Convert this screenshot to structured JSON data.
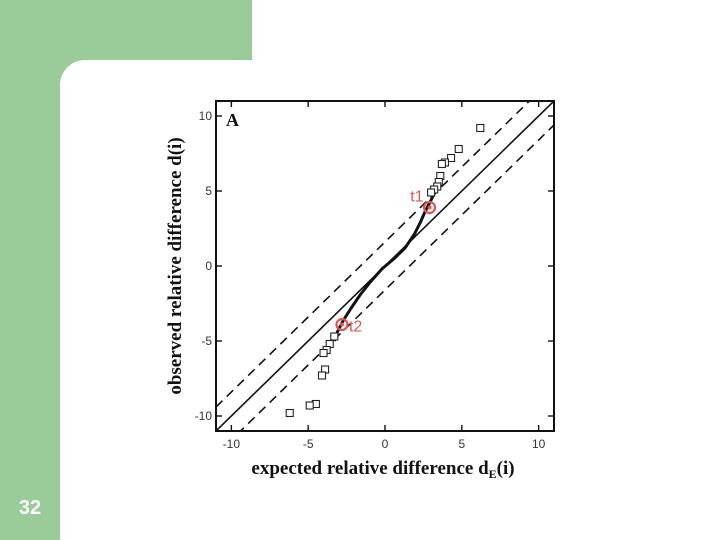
{
  "slide": {
    "page_number": "32",
    "colors": {
      "accent_green": "#99cc99",
      "background": "#ffffff"
    }
  },
  "chart_data": {
    "type": "scatter",
    "panel_label": "A",
    "title": "",
    "xlabel": "expected relative difference d",
    "xlabel_subscript": "E",
    "xlabel_suffix": "(i)",
    "ylabel": "observed relative difference d(i)",
    "xlim": [
      -11,
      11
    ],
    "ylim": [
      -11,
      11
    ],
    "x_ticks": [
      -10,
      -5,
      0,
      5,
      10
    ],
    "y_ticks": [
      -10,
      -5,
      0,
      5,
      10
    ],
    "grid": false,
    "series": [
      {
        "marker": "open-square",
        "points": [
          [
            6.2,
            9.2
          ],
          [
            4.8,
            7.8
          ],
          [
            4.3,
            7.2
          ],
          [
            3.9,
            6.9
          ],
          [
            3.7,
            6.8
          ],
          [
            3.6,
            6.0
          ],
          [
            3.5,
            5.6
          ],
          [
            3.4,
            5.3
          ],
          [
            3.2,
            5.1
          ],
          [
            3.0,
            4.9
          ],
          [
            -3.3,
            -4.7
          ],
          [
            -3.6,
            -5.2
          ],
          [
            -3.8,
            -5.6
          ],
          [
            -4.0,
            -5.8
          ],
          [
            -3.9,
            -6.9
          ],
          [
            -4.1,
            -7.3
          ],
          [
            -4.5,
            -9.2
          ],
          [
            -4.9,
            -9.3
          ],
          [
            -6.2,
            -9.8
          ]
        ]
      },
      {
        "type": "line",
        "style": "solid-thick",
        "points": [
          [
            -3.3,
            -5.0
          ],
          [
            -3.1,
            -4.4
          ],
          [
            -2.7,
            -3.6
          ],
          [
            -2.2,
            -2.8
          ],
          [
            -1.6,
            -1.9
          ],
          [
            -0.9,
            -1.0
          ],
          [
            -0.2,
            -0.2
          ],
          [
            0.6,
            0.5
          ],
          [
            1.3,
            1.2
          ],
          [
            1.9,
            2.1
          ],
          [
            2.3,
            2.9
          ],
          [
            2.6,
            3.6
          ],
          [
            2.8,
            4.0
          ],
          [
            3.1,
            4.6
          ],
          [
            3.4,
            5.2
          ]
        ]
      }
    ],
    "reference_lines": [
      {
        "style": "solid",
        "slope": 1,
        "intercept": 0
      },
      {
        "style": "dashed",
        "slope": 1,
        "intercept": 1.6
      },
      {
        "style": "dashed",
        "slope": 1,
        "intercept": -1.6
      }
    ],
    "annotations": [
      {
        "label": "t1",
        "x": 2.9,
        "y": 3.9,
        "color": "#e05555"
      },
      {
        "label": "t2",
        "x": -2.8,
        "y": -3.9,
        "color": "#e05555"
      }
    ]
  }
}
